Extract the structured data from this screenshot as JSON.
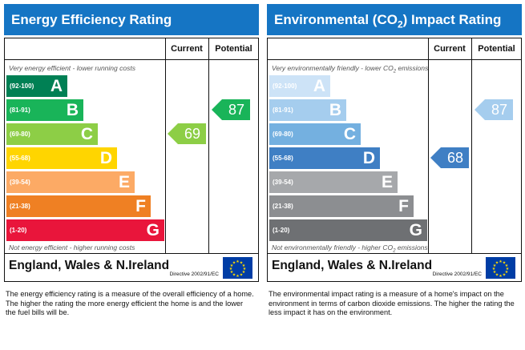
{
  "panels": [
    {
      "title": "Energy Efficiency Rating",
      "header_current": "Current",
      "header_potential": "Potential",
      "top_note": "Very energy efficient - lower running costs",
      "bottom_note": "Not energy efficient - higher running costs",
      "region": "England, Wales & N.Ireland",
      "directive": "Directive 2002/91/EC",
      "caption": "The energy efficiency rating is a measure of the overall efficiency of a home. The higher the rating the more energy efficient the home is and the lower the fuel bills will be."
    },
    {
      "title": "Environmental (CO2) Impact Rating",
      "header_current": "Current",
      "header_potential": "Potential",
      "top_note": "Very environmentally friendly - lower CO2 emissions",
      "bottom_note": "Not environmentally friendly - higher CO2 emissions",
      "region": "England, Wales & N.Ireland",
      "directive": "Directive 2002/91/EC",
      "caption": "The environmental impact rating is a measure of a home's impact on the environment in terms of carbon dioxide emissions. The higher the rating the less impact it has on the environment."
    }
  ],
  "chart_data": [
    {
      "type": "bar",
      "title": "Energy Efficiency Rating",
      "categories": [
        "A",
        "B",
        "C",
        "D",
        "E",
        "F",
        "G"
      ],
      "ranges": [
        "(92-100)",
        "(81-91)",
        "(69-80)",
        "(55-68)",
        "(39-54)",
        "(21-38)",
        "(1-20)"
      ],
      "colors": [
        "#008054",
        "#19b459",
        "#8dce46",
        "#ffd500",
        "#fcaa65",
        "#ef8023",
        "#e9153b"
      ],
      "current": 69,
      "current_color": "#8dce46",
      "potential": 87,
      "potential_color": "#19b459"
    },
    {
      "type": "bar",
      "title": "Environmental (CO2) Impact Rating",
      "categories": [
        "A",
        "B",
        "C",
        "D",
        "E",
        "F",
        "G"
      ],
      "ranges": [
        "(92-100)",
        "(81-91)",
        "(69-80)",
        "(55-68)",
        "(39-54)",
        "(21-38)",
        "(1-20)"
      ],
      "colors": [
        "#cde3f7",
        "#a5cdee",
        "#74b0e0",
        "#3f7fc4",
        "#a6a8ab",
        "#8c8e91",
        "#6e7073"
      ],
      "current": 68,
      "current_color": "#3f7fc4",
      "potential": 87,
      "potential_color": "#a5cdee"
    }
  ]
}
